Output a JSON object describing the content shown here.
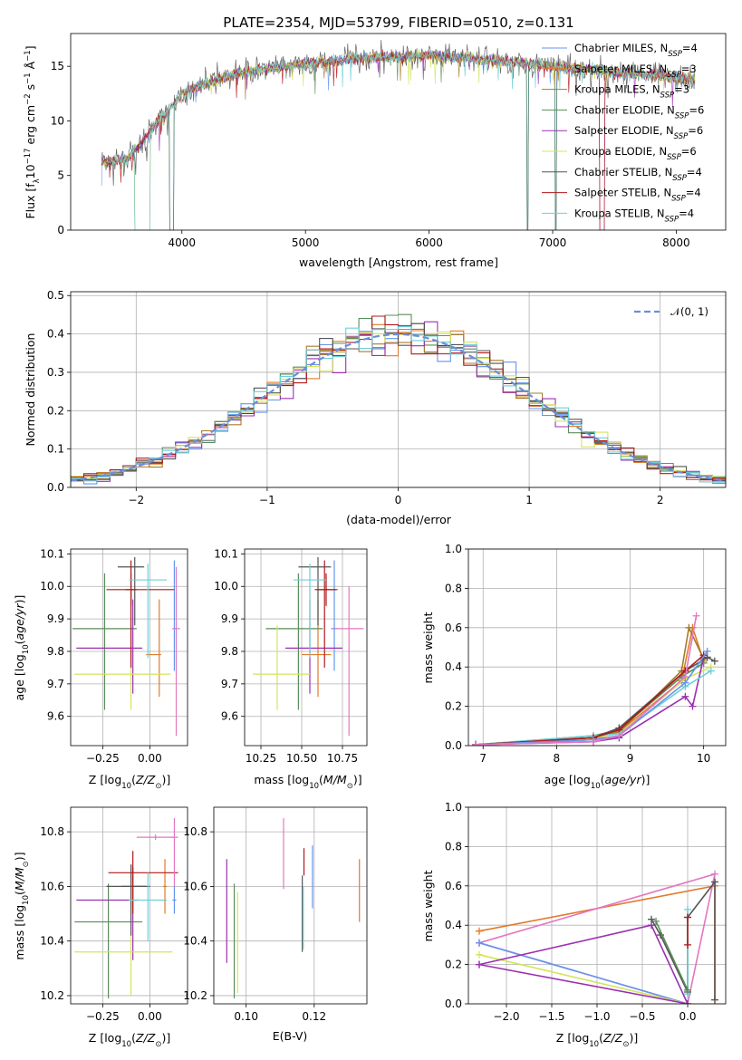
{
  "title": "PLATE=2354, MJD=53799, FIBERID=0510, z=0.131",
  "colors": [
    "#6495ED",
    "#E07B2A",
    "#A67C2A",
    "#5A8E5A",
    "#9B30B0",
    "#D4E45A",
    "#555555",
    "#B01818",
    "#6ECFD8"
  ],
  "spectrum": {
    "xlabel": "wavelength [Angstrom, rest frame]",
    "ylabel": "Flux [f",
    "xlim": [
      3100,
      8400
    ],
    "ylim": [
      0,
      18
    ],
    "xticks": [
      "4000",
      "5000",
      "6000",
      "7000",
      "8000"
    ],
    "yticks": [
      "0",
      "5",
      "10",
      "15"
    ],
    "legend": [
      {
        "text": "Chabrier MILES, N",
        "n": "4"
      },
      {
        "text": "Salpeter MILES, N",
        "n": "3"
      },
      {
        "text": "Kroupa MILES, N",
        "n": "3"
      },
      {
        "text": "Chabrier ELODIE, N",
        "n": "6"
      },
      {
        "text": "Salpeter ELODIE, N",
        "n": "6"
      },
      {
        "text": "Kroupa ELODIE, N",
        "n": "6"
      },
      {
        "text": "Chabrier STELIB, N",
        "n": "4"
      },
      {
        "text": "Salpeter STELIB, N",
        "n": "4"
      },
      {
        "text": "Kroupa STELIB, N",
        "n": "4"
      }
    ],
    "continuum": [
      [
        3350,
        6.2
      ],
      [
        3550,
        6.5
      ],
      [
        3650,
        7.5
      ],
      [
        3800,
        10
      ],
      [
        3900,
        11
      ],
      [
        4000,
        12.5
      ],
      [
        4200,
        13.5
      ],
      [
        4500,
        14.5
      ],
      [
        5000,
        15.2
      ],
      [
        5500,
        15.8
      ],
      [
        6000,
        16
      ],
      [
        6500,
        15.6
      ],
      [
        7000,
        15
      ],
      [
        7500,
        14.5
      ],
      [
        8000,
        14
      ],
      [
        8150,
        13.8
      ]
    ],
    "drops": [
      [
        3620,
        3740,
        2
      ],
      [
        3900,
        3935,
        0
      ],
      [
        6790,
        6800,
        0
      ],
      [
        7020,
        7030,
        0
      ],
      [
        7380,
        7420,
        1
      ]
    ]
  },
  "residuals": {
    "xlabel": "(data-model)/error",
    "ylabel": "Normed distribution",
    "xlim": [
      -2.5,
      2.5
    ],
    "ylim": [
      0,
      0.51
    ],
    "xticks": [
      "−2",
      "−1",
      "0",
      "1",
      "2"
    ],
    "yticks": [
      "0.0",
      "0.1",
      "0.2",
      "0.3",
      "0.4",
      "0.5"
    ],
    "legend": "𝒩(0, 1)",
    "bin_width": 0.1
  },
  "pZage": {
    "xlabel": "Z [log",
    "ylabel": "age  [log",
    "xlim": [
      -0.42,
      0.2
    ],
    "ylim": [
      9.51,
      10.115
    ],
    "xticks": [
      "−0.25",
      "0.00"
    ],
    "yticks": [
      "9.6",
      "9.7",
      "9.8",
      "9.9",
      "10.0",
      "10.1"
    ],
    "points": [
      {
        "x": 0.13,
        "xe": [
          0.01,
          0.01
        ],
        "y": 9.87,
        "ye": [
          0.13,
          0.21
        ]
      },
      {
        "x": 0.05,
        "xe": [
          0.07,
          0.01
        ],
        "y": 9.79,
        "ye": [
          0.13,
          0.17
        ]
      },
      {
        "x": -0.1,
        "xe": [
          0.03,
          0.03
        ],
        "y": 9.99,
        "ye": [
          0.05,
          0.05
        ]
      },
      {
        "x": -0.24,
        "xe": [
          0.17,
          0.17
        ],
        "y": 9.87,
        "ye": [
          0.25,
          0.17
        ]
      },
      {
        "x": -0.09,
        "xe": [
          0.3,
          0.05
        ],
        "y": 9.81,
        "ye": [
          0.14,
          0.15
        ]
      },
      {
        "x": -0.1,
        "xe": [
          0.3,
          0.21
        ],
        "y": 9.73,
        "ye": [
          0.11,
          0.15
        ]
      },
      {
        "x": -0.08,
        "xe": [
          0.09,
          0.05
        ],
        "y": 10.06,
        "ye": [
          0.18,
          0.03
        ]
      },
      {
        "x": -0.1,
        "xe": [
          0.13,
          0.23
        ],
        "y": 9.99,
        "ye": [
          0.24,
          0.09
        ]
      },
      {
        "x": -0.01,
        "xe": [
          0.1,
          0.1
        ],
        "y": 10.02,
        "ye": [
          0.24,
          0.05
        ]
      },
      {
        "x": 0.14,
        "xe": [
          0.02,
          0.02
        ],
        "y": 9.87,
        "ye": [
          0.33,
          0.19
        ]
      }
    ]
  },
  "pMassAge": {
    "xlabel": "mass [log",
    "xlim": [
      10.15,
      10.9
    ],
    "ylim": [
      9.51,
      10.115
    ],
    "xticks": [
      "10.25",
      "10.50",
      "10.75"
    ],
    "yticks": [
      "9.6",
      "9.7",
      "9.8",
      "9.9",
      "10.0",
      "10.1"
    ],
    "points": [
      {
        "x": 10.7,
        "xe": [
          0.02,
          0.02
        ],
        "y": 9.87,
        "ye": [
          0.13,
          0.21
        ]
      },
      {
        "x": 10.6,
        "xe": [
          0.1,
          0.08
        ],
        "y": 9.79,
        "ye": [
          0.13,
          0.17
        ]
      },
      {
        "x": 10.65,
        "xe": [
          0.06,
          0.06
        ],
        "y": 9.99,
        "ye": [
          0.05,
          0.05
        ]
      },
      {
        "x": 10.48,
        "xe": [
          0.2,
          0.15
        ],
        "y": 9.87,
        "ye": [
          0.25,
          0.17
        ]
      },
      {
        "x": 10.55,
        "xe": [
          0.15,
          0.2
        ],
        "y": 9.81,
        "ye": [
          0.14,
          0.15
        ]
      },
      {
        "x": 10.35,
        "xe": [
          0.15,
          0.2
        ],
        "y": 9.73,
        "ye": [
          0.11,
          0.15
        ]
      },
      {
        "x": 10.6,
        "xe": [
          0.12,
          0.08
        ],
        "y": 10.06,
        "ye": [
          0.18,
          0.03
        ]
      },
      {
        "x": 10.64,
        "xe": [
          0.06,
          0.08
        ],
        "y": 9.99,
        "ye": [
          0.24,
          0.09
        ]
      },
      {
        "x": 10.55,
        "xe": [
          0.1,
          0.1
        ],
        "y": 10.02,
        "ye": [
          0.24,
          0.05
        ]
      },
      {
        "x": 10.79,
        "xe": [
          0.09,
          0.09
        ],
        "y": 9.87,
        "ye": [
          0.33,
          0.13
        ]
      }
    ]
  },
  "pAgeMw": {
    "xlabel": "age  [log",
    "ylabel": "mass weight",
    "xlim": [
      6.8,
      10.3
    ],
    "ylim": [
      0,
      1
    ],
    "xticks": [
      "7",
      "8",
      "9",
      "10"
    ],
    "yticks": [
      "0.0",
      "0.2",
      "0.4",
      "0.6",
      "0.8",
      "1.0"
    ],
    "lines": [
      [
        [
          6.9,
          0.005
        ],
        [
          8.5,
          0.03
        ],
        [
          8.85,
          0.07
        ],
        [
          9.7,
          0.33
        ],
        [
          9.85,
          0.6
        ],
        [
          10.0,
          0.43
        ]
      ],
      [
        [
          6.9,
          0.005
        ],
        [
          8.5,
          0.04
        ],
        [
          8.85,
          0.07
        ],
        [
          9.7,
          0.38
        ],
        [
          9.8,
          0.6
        ],
        [
          10.0,
          0.44
        ]
      ],
      [
        [
          6.9,
          0.005
        ],
        [
          8.5,
          0.05
        ],
        [
          8.85,
          0.08
        ],
        [
          9.7,
          0.35
        ],
        [
          10.0,
          0.42
        ]
      ],
      [
        [
          6.9,
          0.005
        ],
        [
          8.5,
          0.04
        ],
        [
          8.85,
          0.06
        ],
        [
          9.75,
          0.34
        ],
        [
          10.1,
          0.4
        ]
      ],
      [
        [
          6.9,
          0.005
        ],
        [
          8.5,
          0.02
        ],
        [
          8.85,
          0.04
        ],
        [
          9.75,
          0.25
        ],
        [
          9.85,
          0.2
        ],
        [
          10.0,
          0.45
        ]
      ],
      [
        [
          6.9,
          0.005
        ],
        [
          8.5,
          0.05
        ],
        [
          8.85,
          0.06
        ],
        [
          9.75,
          0.3
        ],
        [
          10.1,
          0.38
        ]
      ],
      [
        [
          6.9,
          0.005
        ],
        [
          8.5,
          0.04
        ],
        [
          8.85,
          0.09
        ],
        [
          9.75,
          0.38
        ],
        [
          10.05,
          0.45
        ],
        [
          10.15,
          0.43
        ]
      ],
      [
        [
          6.9,
          0.005
        ],
        [
          8.5,
          0.04
        ],
        [
          8.85,
          0.08
        ],
        [
          9.75,
          0.38
        ],
        [
          10.0,
          0.46
        ]
      ],
      [
        [
          6.9,
          0.005
        ],
        [
          8.5,
          0.03
        ],
        [
          8.85,
          0.05
        ],
        [
          9.75,
          0.32
        ],
        [
          10.05,
          0.48
        ]
      ],
      [
        [
          6.9,
          0.005
        ],
        [
          8.5,
          0.02
        ],
        [
          8.85,
          0.05
        ],
        [
          9.75,
          0.35
        ],
        [
          9.9,
          0.66
        ]
      ]
    ]
  },
  "pZmass": {
    "xlabel": "Z [log",
    "ylabel": "mass [log",
    "xlim": [
      -0.42,
      0.2
    ],
    "ylim": [
      10.17,
      10.89
    ],
    "xticks": [
      "−0.25",
      "0.00"
    ],
    "yticks": [
      "10.2",
      "10.4",
      "10.6",
      "10.8"
    ],
    "points": [
      {
        "x": 0.13,
        "xe": [
          0.01,
          0.01
        ],
        "y": 10.55,
        "ye": [
          0.05,
          0.05
        ]
      },
      {
        "x": 0.08,
        "xe": [
          0.01,
          0.01
        ],
        "y": 10.6,
        "ye": [
          0.1,
          0.1
        ]
      },
      {
        "x": -0.1,
        "xe": [
          0.05,
          0.1
        ],
        "y": 10.6,
        "ye": [
          0.08,
          0.08
        ]
      },
      {
        "x": -0.22,
        "xe": [
          0.18,
          0.18
        ],
        "y": 10.47,
        "ye": [
          0.28,
          0.14
        ]
      },
      {
        "x": -0.09,
        "xe": [
          0.3,
          0.03
        ],
        "y": 10.55,
        "ye": [
          0.22,
          0.12
        ]
      },
      {
        "x": -0.1,
        "xe": [
          0.3,
          0.22
        ],
        "y": 10.36,
        "ye": [
          0.16,
          0.3
        ]
      },
      {
        "x": -0.1,
        "xe": [
          0.13,
          0.08
        ],
        "y": 10.6,
        "ye": [
          0.18,
          0.08
        ]
      },
      {
        "x": -0.09,
        "xe": [
          0.13,
          0.24
        ],
        "y": 10.65,
        "ye": [
          0.15,
          0.08
        ]
      },
      {
        "x": -0.01,
        "xe": [
          0.1,
          0.1
        ],
        "y": 10.55,
        "ye": [
          0.15,
          0.1
        ]
      },
      {
        "x": 0.13,
        "xe": [
          0.02,
          0.02
        ],
        "y": 10.78,
        "ye": [
          0.18,
          0.07
        ]
      },
      {
        "x": 0.03,
        "xe": [
          0.1,
          0.1
        ],
        "y": 10.78,
        "ye": [
          0.01,
          0.01
        ]
      }
    ]
  },
  "pEbvMass": {
    "xlabel": "E(B-V)",
    "xlim": [
      0.0905,
      0.1355
    ],
    "ylim": [
      10.17,
      10.89
    ],
    "xticks": [
      "0.10",
      "0.12"
    ],
    "yticks": [
      "10.2",
      "10.4",
      "10.6",
      "10.8"
    ],
    "points": [
      {
        "x": 0.0943,
        "lo": 10.32,
        "hi": 10.7,
        "c": 4
      },
      {
        "x": 0.0965,
        "lo": 10.19,
        "hi": 10.61,
        "c": 3
      },
      {
        "x": 0.0975,
        "lo": 10.21,
        "hi": 10.58,
        "c": 5
      },
      {
        "x": 0.111,
        "lo": 10.59,
        "hi": 10.85,
        "c": 9
      },
      {
        "x": 0.1165,
        "lo": 10.36,
        "hi": 10.64,
        "c": 6
      },
      {
        "x": 0.1168,
        "lo": 10.37,
        "hi": 10.6,
        "c": 8
      },
      {
        "x": 0.117,
        "lo": 10.64,
        "hi": 10.74,
        "c": 7
      },
      {
        "x": 0.1195,
        "lo": 10.52,
        "hi": 10.75,
        "c": 0
      },
      {
        "x": 0.1333,
        "lo": 10.47,
        "hi": 10.7,
        "c": 1
      }
    ]
  },
  "pZmw": {
    "xlabel": "Z [log",
    "ylabel": "mass weight",
    "xlim": [
      -2.42,
      0.42
    ],
    "ylim": [
      0,
      1
    ],
    "xticks": [
      "−2.0",
      "−1.5",
      "−1.0",
      "−0.5",
      "0.0"
    ],
    "yticks": [
      "0.0",
      "0.2",
      "0.4",
      "0.6",
      "0.8",
      "1.0"
    ],
    "lines": [
      [
        [
          -2.3,
          0.37
        ],
        [
          0.3,
          0.6
        ],
        [
          0.3,
          0.02
        ]
      ],
      [
        [
          -2.3,
          0.31
        ],
        [
          0.3,
          0.66
        ],
        [
          0.0,
          0.0
        ],
        [
          -2.3,
          0.31
        ]
      ],
      [
        [
          -2.3,
          0.31
        ],
        [
          0.0,
          0.0
        ]
      ],
      [
        [
          -2.3,
          0.25
        ],
        [
          0.0,
          0.0
        ]
      ],
      [
        [
          -2.3,
          0.2
        ],
        [
          -0.4,
          0.4
        ],
        [
          0.0,
          0.0
        ]
      ],
      [
        [
          -2.3,
          0.2
        ],
        [
          0.0,
          0.0
        ]
      ],
      [
        [
          -0.4,
          0.43
        ],
        [
          -0.3,
          0.35
        ],
        [
          0.0,
          0.06
        ],
        [
          0.0,
          0.44
        ],
        [
          0.3,
          0.62
        ],
        [
          0.3,
          0.02
        ]
      ],
      [
        [
          0.0,
          0.48
        ],
        [
          0.0,
          0.05
        ]
      ],
      [
        [
          -0.35,
          0.42
        ],
        [
          0.0,
          0.07
        ]
      ],
      [
        [
          0.0,
          0.44
        ],
        [
          0.0,
          0.3
        ]
      ]
    ]
  }
}
